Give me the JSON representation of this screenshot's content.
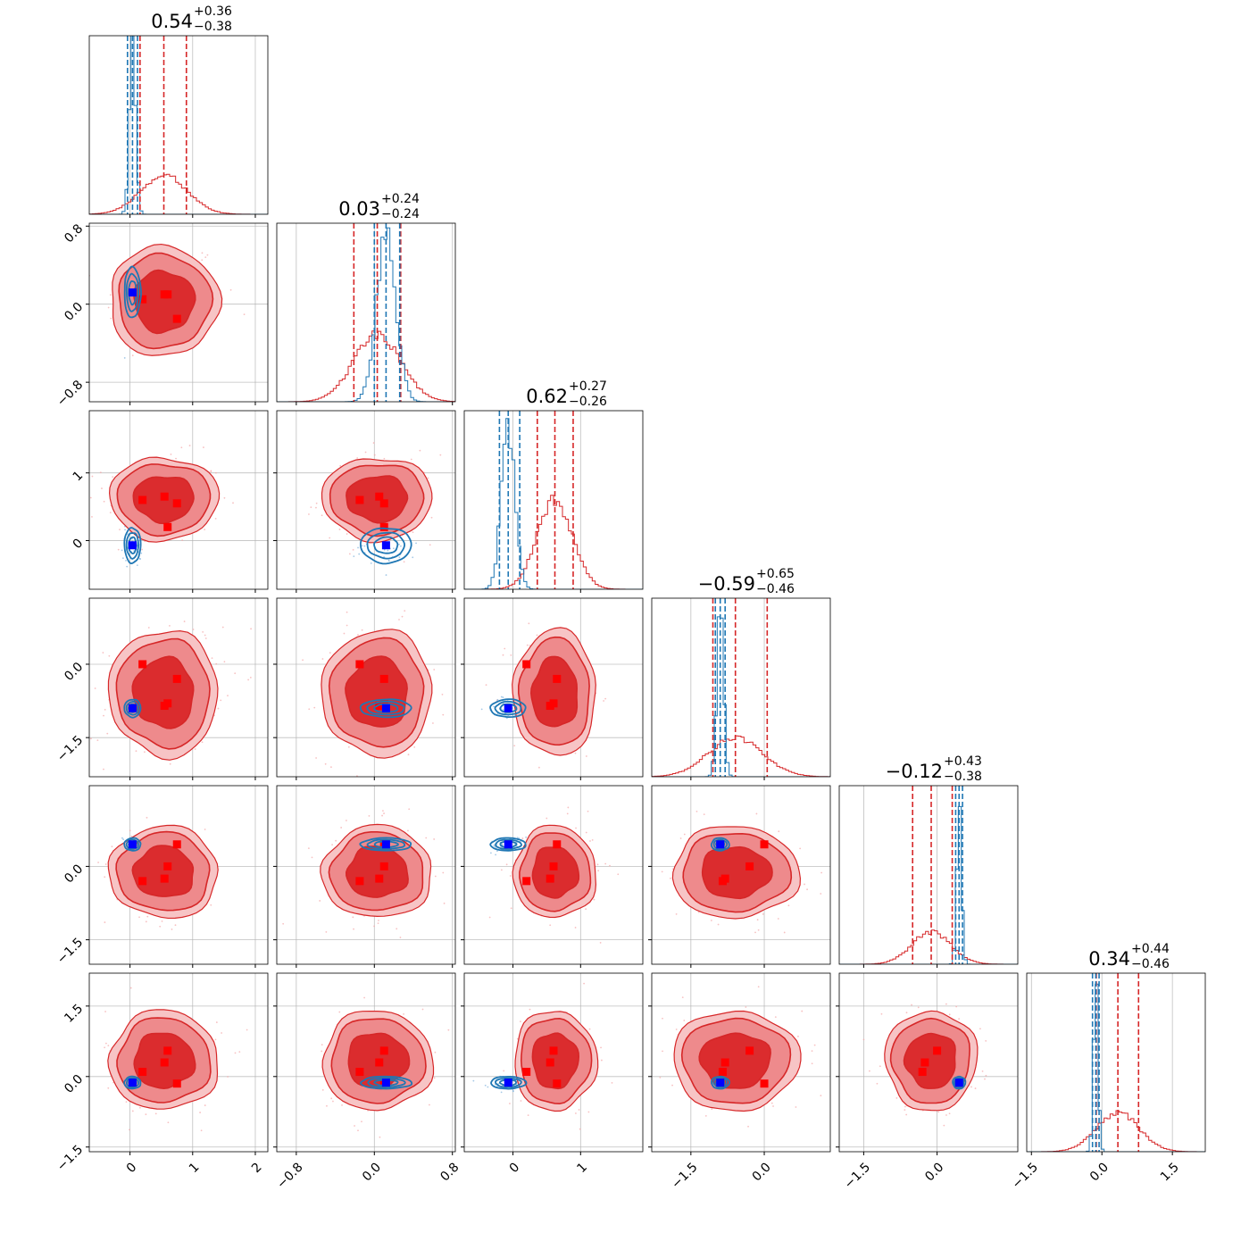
{
  "chart_data": {
    "type": "corner",
    "grid": true,
    "colors": {
      "red": "#d62728",
      "blue": "#1f77b4",
      "red_marker": "#ff0000",
      "blue_marker": "#0000ff"
    },
    "params": [
      {
        "title_value": "0.54",
        "title_plus": "+0.36",
        "title_minus": "−0.38",
        "lim": [
          -0.65,
          2.2
        ],
        "ticks": [
          0,
          1,
          2
        ],
        "tick_labels": [
          "0",
          "1",
          "2"
        ],
        "red": {
          "mean": 0.54,
          "sd": 0.37,
          "q16": 0.16,
          "q84": 0.9,
          "peak_rel": 0.22
        },
        "blue": {
          "mean": 0.04,
          "sd": 0.05,
          "q16": -0.04,
          "q84": 0.12,
          "peak_rel": 0.92
        },
        "red_markers": [
          0.2,
          0.55,
          0.6,
          0.75
        ],
        "blue_marker": 0.04
      },
      {
        "title_value": "0.03",
        "title_plus": "+0.24",
        "title_minus": "−0.24",
        "lim": [
          -1.0,
          0.83
        ],
        "ticks": [
          -0.8,
          0.0,
          0.8
        ],
        "tick_labels": [
          "−0.8",
          "0.0",
          "0.8"
        ],
        "red": {
          "mean": 0.03,
          "sd": 0.24,
          "q16": -0.21,
          "q84": 0.27,
          "peak_rel": 0.38
        },
        "blue": {
          "mean": 0.12,
          "sd": 0.1,
          "q16": 0.0,
          "q84": 0.26,
          "peak_rel": 0.92
        },
        "red_markers": [
          -0.15,
          0.05,
          0.1,
          0.1
        ],
        "blue_marker": 0.12
      },
      {
        "title_value": "0.62",
        "title_plus": "+0.27",
        "title_minus": "−0.26",
        "lim": [
          -0.72,
          1.92
        ],
        "ticks": [
          0,
          1
        ],
        "tick_labels": [
          "0",
          "1"
        ],
        "red": {
          "mean": 0.62,
          "sd": 0.26,
          "q16": 0.36,
          "q84": 0.89,
          "peak_rel": 0.5
        },
        "blue": {
          "mean": -0.07,
          "sd": 0.1,
          "q16": -0.2,
          "q84": 0.1,
          "peak_rel": 0.92
        },
        "red_markers": [
          0.2,
          0.55,
          0.6,
          0.65
        ],
        "blue_marker": -0.07
      },
      {
        "title_value": "−0.59",
        "title_plus": "+0.65",
        "title_minus": "−0.46",
        "lim": [
          -2.3,
          1.35
        ],
        "ticks": [
          -1.5,
          0.0
        ],
        "tick_labels": [
          "−1.5",
          "0.0"
        ],
        "red": {
          "mean": -0.59,
          "sd": 0.55,
          "q16": -1.05,
          "q84": 0.06,
          "peak_rel": 0.22
        },
        "blue": {
          "mean": -0.9,
          "sd": 0.07,
          "q16": -1.0,
          "q84": -0.8,
          "peak_rel": 0.92
        },
        "red_markers": [
          -0.85,
          -0.8,
          -0.3,
          0.0
        ],
        "blue_marker": -0.9
      },
      {
        "title_value": "−0.12",
        "title_plus": "+0.43",
        "title_minus": "−0.38",
        "lim": [
          -2.0,
          1.65
        ],
        "ticks": [
          -1.5,
          0.0
        ],
        "tick_labels": [
          "−1.5",
          "0.0"
        ],
        "red": {
          "mean": -0.12,
          "sd": 0.4,
          "q16": -0.5,
          "q84": 0.31,
          "peak_rel": 0.18
        },
        "blue": {
          "mean": 0.45,
          "sd": 0.05,
          "q16": 0.38,
          "q84": 0.52,
          "peak_rel": 0.92
        },
        "red_markers": [
          -0.3,
          -0.25,
          0.0,
          0.45
        ],
        "blue_marker": 0.45
      },
      {
        "title_value": "0.34",
        "title_plus": "+0.44",
        "title_minus": "−0.46",
        "lim": [
          -1.6,
          2.2
        ],
        "ticks": [
          -1.5,
          0.0,
          1.5
        ],
        "tick_labels": [
          "−1.5",
          "0.0",
          "1.5"
        ],
        "red": {
          "mean": 0.34,
          "sd": 0.45,
          "q16": -0.12,
          "q84": 0.78,
          "peak_rel": 0.22
        },
        "blue": {
          "mean": -0.13,
          "sd": 0.05,
          "q16": -0.2,
          "q84": -0.06,
          "peak_rel": 0.92
        },
        "red_markers": [
          -0.15,
          0.1,
          0.3,
          0.55
        ],
        "blue_marker": -0.13
      }
    ]
  }
}
